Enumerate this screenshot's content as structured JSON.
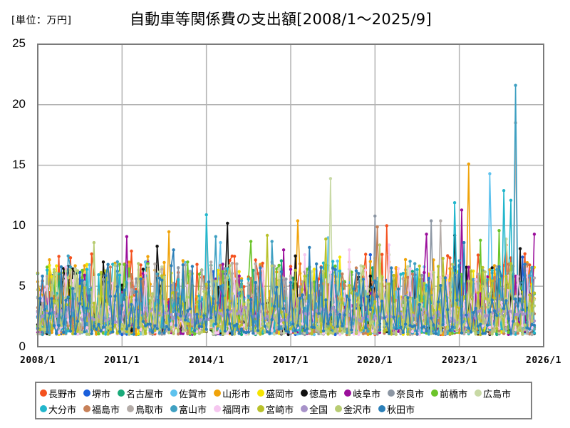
{
  "header": {
    "unit_label": "[単位：万円]",
    "title": "自動車等関係費の支出額[2008/1～2025/9]"
  },
  "chart_data": {
    "type": "line",
    "title": "自動車等関係費の支出額[2008/1～2025/9]",
    "unit": "万円",
    "xlabel": "",
    "ylabel": "",
    "x_range": [
      "2008/1",
      "2026/1"
    ],
    "data_range": [
      "2008/1",
      "2025/9"
    ],
    "ylim": [
      0,
      25
    ],
    "y_ticks": [
      "0",
      "5",
      "10",
      "15",
      "20",
      "25"
    ],
    "x_ticks": [
      "2008/1",
      "2011/1",
      "2014/1",
      "2017/1",
      "2020/1",
      "2023/1",
      "2026/1"
    ],
    "grid": true,
    "legend_position": "bottom",
    "markers": true,
    "series": [
      {
        "name": "長野市",
        "color": "#f4511e",
        "base": 2.4,
        "spread": 2.6,
        "peaks": [
          [
            40,
            7.9
          ],
          [
            121,
            6.6
          ],
          [
            149,
            10.0
          ],
          [
            213,
            9.9
          ],
          [
            200,
            8.4
          ]
        ]
      },
      {
        "name": "堺市",
        "color": "#1a5fdc",
        "base": 1.5,
        "spread": 2.0,
        "peaks": [
          [
            23,
            4.8
          ],
          [
            75,
            6.2
          ],
          [
            142,
            7.6
          ],
          [
            190,
            6.3
          ],
          [
            207,
            7.4
          ]
        ]
      },
      {
        "name": "名古屋市",
        "color": "#1aaa7a",
        "base": 1.8,
        "spread": 2.2,
        "peaks": [
          [
            46,
            7.0
          ],
          [
            104,
            7.1
          ],
          [
            180,
            6.6
          ],
          [
            209,
            6.4
          ]
        ]
      },
      {
        "name": "佐賀市",
        "color": "#5ec2ee",
        "base": 2.0,
        "spread": 2.4,
        "peaks": [
          [
            78,
            8.6
          ],
          [
            124,
            9.0
          ],
          [
            193,
            14.3
          ],
          [
            165,
            6.6
          ]
        ]
      },
      {
        "name": "山形市",
        "color": "#f0a30a",
        "base": 2.2,
        "spread": 2.6,
        "peaks": [
          [
            56,
            9.5
          ],
          [
            111,
            10.4
          ],
          [
            184,
            15.1
          ],
          [
            157,
            7.2
          ]
        ]
      },
      {
        "name": "盛岡市",
        "color": "#f5e400",
        "base": 1.8,
        "spread": 2.4,
        "peaks": [
          [
            86,
            6.2
          ],
          [
            129,
            7.4
          ],
          [
            167,
            6.0
          ]
        ]
      },
      {
        "name": "徳島市",
        "color": "#111111",
        "base": 1.7,
        "spread": 2.2,
        "peaks": [
          [
            28,
            7.0
          ],
          [
            51,
            8.3
          ],
          [
            81,
            10.2
          ],
          [
            110,
            7.5
          ],
          [
            178,
            9.2
          ],
          [
            206,
            8.1
          ]
        ]
      },
      {
        "name": "岐阜市",
        "color": "#9b0f9b",
        "base": 1.9,
        "spread": 2.4,
        "peaks": [
          [
            38,
            9.1
          ],
          [
            105,
            8.0
          ],
          [
            166,
            9.3
          ],
          [
            181,
            11.3
          ],
          [
            212,
            9.3
          ]
        ]
      },
      {
        "name": "奈良市",
        "color": "#8c96a3",
        "base": 1.9,
        "spread": 2.3,
        "peaks": [
          [
            42,
            5.6
          ],
          [
            144,
            10.8
          ],
          [
            168,
            10.4
          ],
          [
            204,
            18.5
          ]
        ]
      },
      {
        "name": "前橋市",
        "color": "#6cc42b",
        "base": 1.9,
        "spread": 2.3,
        "peaks": [
          [
            64,
            7.0
          ],
          [
            91,
            8.7
          ],
          [
            189,
            8.8
          ],
          [
            197,
            9.6
          ]
        ]
      },
      {
        "name": "広島市",
        "color": "#c8d9a5",
        "base": 1.8,
        "spread": 2.2,
        "peaks": [
          [
            125,
            13.9
          ],
          [
            150,
            7.6
          ],
          [
            200,
            8.9
          ]
        ]
      },
      {
        "name": "大分市",
        "color": "#22b6cc",
        "base": 2.0,
        "spread": 2.4,
        "peaks": [
          [
            72,
            10.9
          ],
          [
            178,
            11.9
          ],
          [
            202,
            12.1
          ],
          [
            199,
            12.9
          ]
        ]
      },
      {
        "name": "福島市",
        "color": "#c78159",
        "base": 1.9,
        "spread": 2.2,
        "peaks": [
          [
            145,
            9.9
          ],
          [
            160,
            6.0
          ],
          [
            209,
            6.8
          ]
        ]
      },
      {
        "name": "鳥取市",
        "color": "#b4aca8",
        "base": 1.9,
        "spread": 2.4,
        "peaks": [
          [
            30,
            6.0
          ],
          [
            172,
            10.4
          ],
          [
            204,
            18.5
          ]
        ]
      },
      {
        "name": "富山市",
        "color": "#3fa0c2",
        "base": 2.0,
        "spread": 2.4,
        "peaks": [
          [
            13,
            7.5
          ],
          [
            76,
            9.1
          ],
          [
            100,
            8.7
          ],
          [
            204,
            21.6
          ]
        ]
      },
      {
        "name": "福岡市",
        "color": "#f6c7f0",
        "base": 1.8,
        "spread": 2.0,
        "peaks": [
          [
            133,
            8.0
          ],
          [
            150,
            8.4
          ],
          [
            114,
            7.6
          ]
        ]
      },
      {
        "name": "宮崎市",
        "color": "#b9c12a",
        "base": 1.9,
        "spread": 2.3,
        "peaks": [
          [
            98,
            9.2
          ],
          [
            123,
            8.9
          ],
          [
            173,
            7.3
          ]
        ]
      },
      {
        "name": "全国",
        "color": "#a792c9",
        "base": 2.6,
        "spread": 0.8,
        "peaks": []
      },
      {
        "name": "金沢市",
        "color": "#b8cc72",
        "base": 1.9,
        "spread": 2.3,
        "peaks": [
          [
            24,
            8.6
          ],
          [
            146,
            8.4
          ],
          [
            177,
            6.8
          ]
        ]
      },
      {
        "name": "秋田市",
        "color": "#2b7fb8",
        "base": 2.0,
        "spread": 2.3,
        "peaks": [
          [
            58,
            8.0
          ],
          [
            116,
            8.2
          ],
          [
            182,
            8.6
          ]
        ]
      }
    ]
  },
  "axes": {
    "y_ticks": [
      "0",
      "5",
      "10",
      "15",
      "20",
      "25"
    ],
    "x_ticks": [
      "2008/1",
      "2011/1",
      "2014/1",
      "2017/1",
      "2020/1",
      "2023/1",
      "2026/1"
    ]
  },
  "legend": {
    "row1": [
      {
        "label": "長野市",
        "color": "#f4511e"
      },
      {
        "label": "堺市",
        "color": "#1a5fdc"
      },
      {
        "label": "名古屋市",
        "color": "#1aaa7a"
      },
      {
        "label": "佐賀市",
        "color": "#5ec2ee"
      },
      {
        "label": "山形市",
        "color": "#f0a30a"
      },
      {
        "label": "盛岡市",
        "color": "#f5e400"
      },
      {
        "label": "徳島市",
        "color": "#111111"
      },
      {
        "label": "岐阜市",
        "color": "#9b0f9b"
      },
      {
        "label": "奈良市",
        "color": "#8c96a3"
      },
      {
        "label": "前橋市",
        "color": "#6cc42b"
      },
      {
        "label": "広島市",
        "color": "#c8d9a5"
      }
    ],
    "row2": [
      {
        "label": "大分市",
        "color": "#22b6cc"
      },
      {
        "label": "福島市",
        "color": "#c78159"
      },
      {
        "label": "鳥取市",
        "color": "#b4aca8"
      },
      {
        "label": "富山市",
        "color": "#3fa0c2"
      },
      {
        "label": "福岡市",
        "color": "#f6c7f0"
      },
      {
        "label": "宮崎市",
        "color": "#b9c12a"
      },
      {
        "label": "全国",
        "color": "#a792c9"
      },
      {
        "label": "金沢市",
        "color": "#b8cc72"
      },
      {
        "label": "秋田市",
        "color": "#2b7fb8"
      }
    ]
  }
}
